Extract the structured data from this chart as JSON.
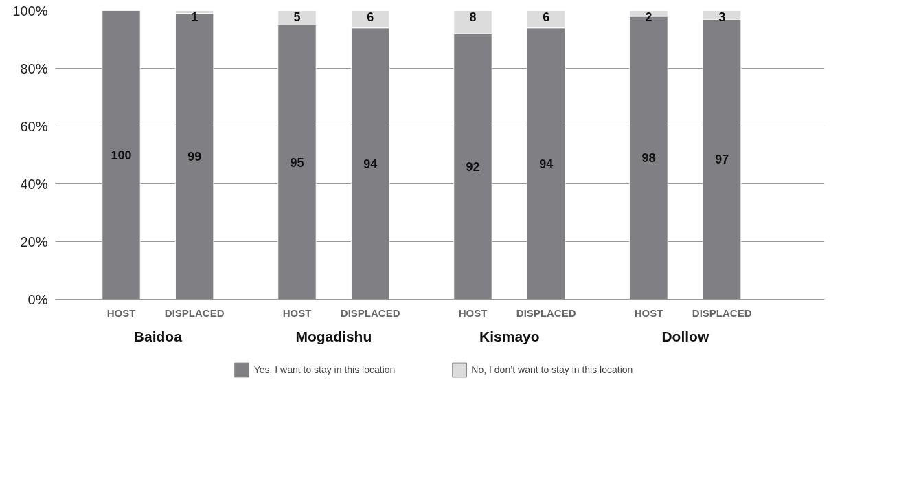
{
  "chart_data": {
    "type": "bar",
    "stacked": true,
    "categories": [
      "HOST",
      "DISPLACED",
      "HOST",
      "DISPLACED",
      "HOST",
      "DISPLACED",
      "HOST",
      "DISPLACED"
    ],
    "annotations": [
      "Baidoa",
      "Mogadishu",
      "Kismayo",
      "Dollow"
    ],
    "series": [
      {
        "name": "Yes, I want to stay in this location",
        "color": "#808084",
        "values": [
          100,
          99,
          95,
          94,
          92,
          94,
          98,
          97
        ],
        "value_labels": [
          "100",
          "99",
          "95",
          "94",
          "92",
          "94",
          "98",
          "97"
        ]
      },
      {
        "name": "No, I don’t want to stay in this location",
        "color": "#dcdcdc",
        "values": [
          0,
          1,
          5,
          6,
          8,
          6,
          2,
          3
        ],
        "value_labels": [
          null,
          "1",
          "5",
          "6",
          "8",
          "6",
          "2",
          "3"
        ]
      }
    ],
    "ylim": [
      0,
      100
    ],
    "yticks": [
      {
        "value": 0,
        "label": "0%"
      },
      {
        "value": 20,
        "label": "20%"
      },
      {
        "value": 40,
        "label": "40%"
      },
      {
        "value": 60,
        "label": "60%"
      },
      {
        "value": 80,
        "label": "80%"
      },
      {
        "value": 100,
        "label": "100%"
      }
    ],
    "grid": "y",
    "legend": "bottom"
  }
}
